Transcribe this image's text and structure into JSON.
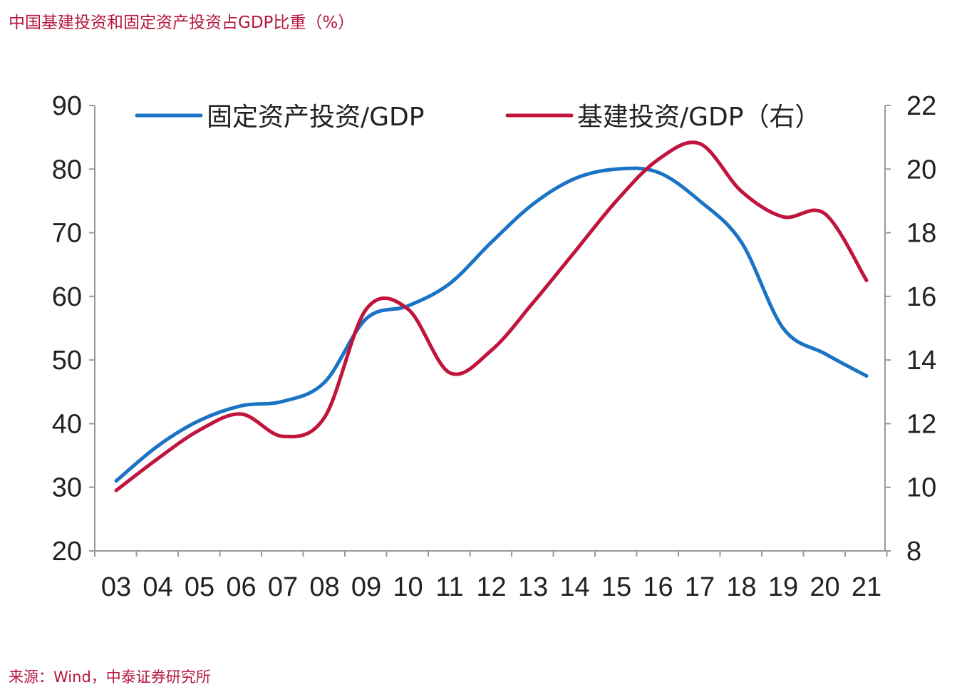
{
  "title": "中国基建投资和固定资产投资占GDP比重（%）",
  "source": "来源：Wind，中泰证券研究所",
  "chart_data": {
    "type": "line",
    "categories": [
      "03",
      "04",
      "05",
      "06",
      "07",
      "08",
      "09",
      "10",
      "11",
      "12",
      "13",
      "14",
      "15",
      "16",
      "17",
      "18",
      "19",
      "20",
      "21"
    ],
    "series": [
      {
        "name": "固定资产投资/GDP",
        "axis": "left",
        "color": "#1a73c4",
        "values": [
          31,
          36.5,
          40.5,
          42.8,
          43.5,
          46.5,
          56.5,
          58.5,
          62,
          68.5,
          74.5,
          78.5,
          80,
          79.5,
          75,
          68.5,
          55,
          51,
          47.5
        ]
      },
      {
        "name": "基建投资/GDP（右）",
        "axis": "right",
        "color": "#c0143c",
        "values": [
          9.9,
          10.9,
          11.8,
          12.3,
          11.6,
          12.2,
          15.6,
          15.6,
          13.6,
          14.3,
          15.8,
          17.4,
          19.0,
          20.3,
          20.8,
          19.3,
          18.5,
          18.6,
          16.5
        ]
      }
    ],
    "y_left": {
      "ticks": [
        "90",
        "80",
        "70",
        "60",
        "50",
        "40",
        "30",
        "20"
      ],
      "lim": [
        20,
        90
      ]
    },
    "y_right": {
      "ticks": [
        "22",
        "20",
        "18",
        "16",
        "14",
        "12",
        "10",
        "8"
      ],
      "lim": [
        8,
        22
      ]
    },
    "legend": [
      "固定资产投资/GDP",
      "基建投资/GDP（右）"
    ],
    "legend_position": "top"
  }
}
